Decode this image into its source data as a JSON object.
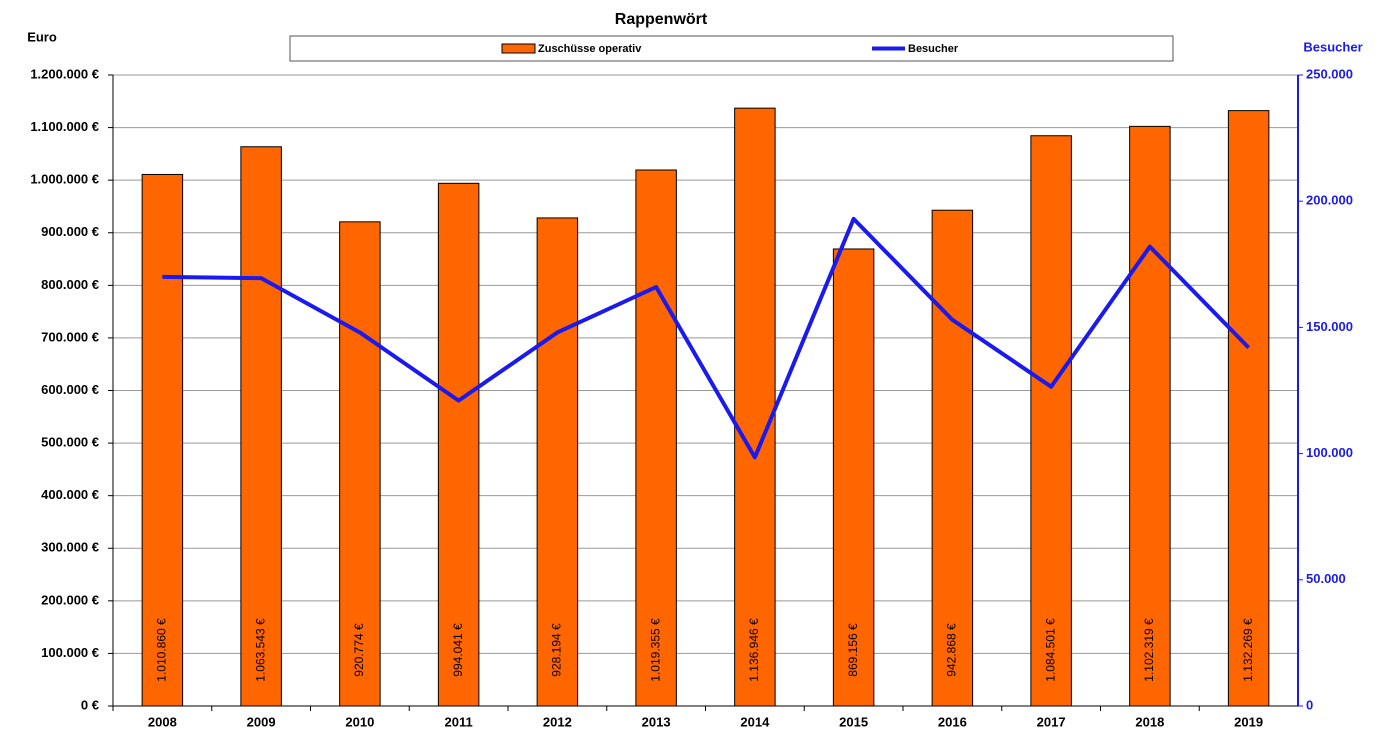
{
  "chart_data": {
    "type": "bar",
    "title": "Rappenwört",
    "y_label": "Euro",
    "y2_label": "Besucher",
    "categories": [
      "2008",
      "2009",
      "2010",
      "2011",
      "2012",
      "2013",
      "2014",
      "2015",
      "2016",
      "2017",
      "2018",
      "2019"
    ],
    "series": [
      {
        "name": "Zuschüsse operativ",
        "type": "bar",
        "color": "#ff6600",
        "values": [
          1010860,
          1063543,
          920774,
          994041,
          928194,
          1019355,
          1136946,
          869156,
          942868,
          1084501,
          1102319,
          1132269
        ],
        "value_labels": [
          "1.010.860 €",
          "1.063.543 €",
          "920.774 €",
          "994.041 €",
          "928.194 €",
          "1.019.355 €",
          "1.136.946 €",
          "869.156 €",
          "942.868 €",
          "1.084.501 €",
          "1.102.319 €",
          "1.132.269 €"
        ]
      },
      {
        "name": "Besucher",
        "type": "line",
        "color": "#1a1aee",
        "axis": "y2",
        "values": [
          170000,
          169500,
          148000,
          121000,
          148000,
          166000,
          98500,
          193000,
          153000,
          126500,
          182000,
          142000
        ]
      }
    ],
    "ylim": [
      0,
      1200000
    ],
    "yticks": [
      {
        "value": 0,
        "label": "0 €"
      },
      {
        "value": 100000,
        "label": "100.000 €"
      },
      {
        "value": 200000,
        "label": "200.000 €"
      },
      {
        "value": 300000,
        "label": "300.000 €"
      },
      {
        "value": 400000,
        "label": "400.000 €"
      },
      {
        "value": 500000,
        "label": "500.000 €"
      },
      {
        "value": 600000,
        "label": "600.000 €"
      },
      {
        "value": 700000,
        "label": "700.000 €"
      },
      {
        "value": 800000,
        "label": "800.000 €"
      },
      {
        "value": 900000,
        "label": "900.000 €"
      },
      {
        "value": 1000000,
        "label": "1.000.000 €"
      },
      {
        "value": 1100000,
        "label": "1.100.000 €"
      },
      {
        "value": 1200000,
        "label": "1.200.000 €"
      }
    ],
    "y2lim": [
      0,
      250000
    ],
    "y2ticks": [
      0,
      {
        "value": 50000,
        "label": "50.000"
      },
      {
        "value": 100000,
        "label": "100.000"
      },
      {
        "value": 150000,
        "label": "150.000"
      },
      {
        "value": 200000,
        "label": "200.000"
      },
      {
        "value": 250000,
        "label": "250.000"
      }
    ],
    "grid": true
  }
}
